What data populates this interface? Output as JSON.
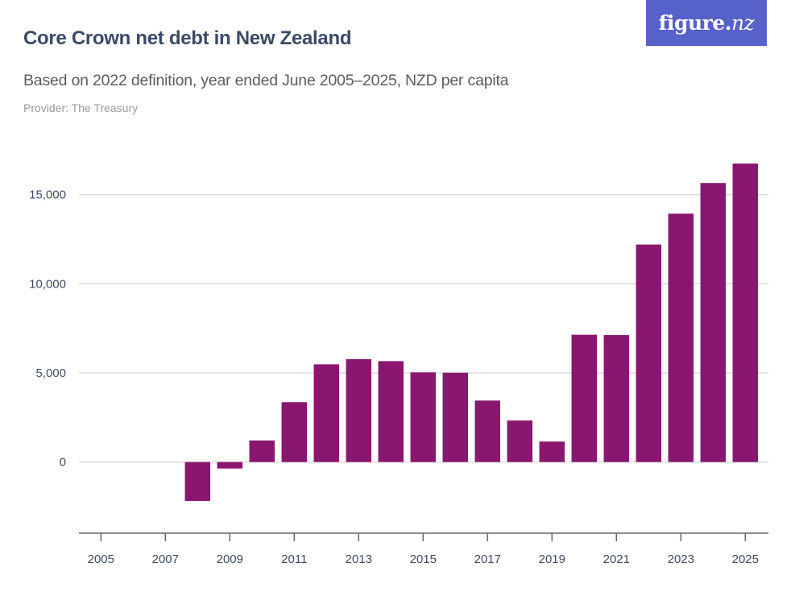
{
  "header": {
    "title": "Core Crown net debt in New Zealand",
    "subtitle": "Based on 2022 definition, year ended June 2005–2025, NZD per capita",
    "provider": "Provider: The Treasury"
  },
  "logo": {
    "text_main": "figure.",
    "text_accent": "nz",
    "background": "#5661c9"
  },
  "colors": {
    "bar": "#8a1670",
    "grid": "#dcdcdc",
    "axis": "#666666",
    "text": "#3d4b66"
  },
  "chart_data": {
    "type": "bar",
    "title": "Core Crown net debt in New Zealand",
    "subtitle": "Based on 2022 definition, year ended June 2005–2025, NZD per capita",
    "xlabel": "",
    "ylabel": "",
    "ylim": [
      -4000,
      18000
    ],
    "xlim": [
      2004.3,
      2025.7
    ],
    "grid": true,
    "legend": "none",
    "yticks": [
      0,
      5000,
      10000,
      15000
    ],
    "ytick_labels": [
      "0",
      "5,000",
      "10,000",
      "15,000"
    ],
    "xticks": [
      2005,
      2007,
      2009,
      2011,
      2013,
      2015,
      2017,
      2019,
      2021,
      2023,
      2025
    ],
    "xtick_labels": [
      "2005",
      "2007",
      "2009",
      "2011",
      "2013",
      "2015",
      "2017",
      "2019",
      "2021",
      "2023",
      "2025"
    ],
    "categories": [
      2008,
      2009,
      2010,
      2011,
      2012,
      2013,
      2014,
      2015,
      2016,
      2017,
      2018,
      2019,
      2020,
      2021,
      2022,
      2023,
      2024,
      2025
    ],
    "values": [
      -2180,
      -360,
      1210,
      3360,
      5480,
      5770,
      5660,
      5030,
      5010,
      3450,
      2330,
      1150,
      7140,
      7120,
      12200,
      13930,
      15650,
      16740
    ]
  }
}
